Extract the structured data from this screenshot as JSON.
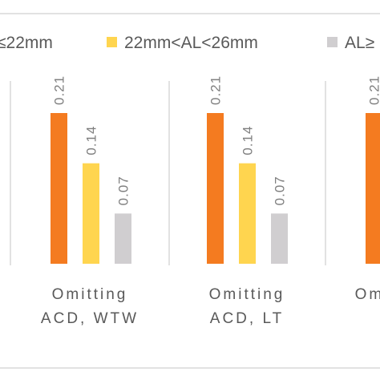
{
  "chart_data": {
    "type": "bar",
    "categories": [
      [
        "Omitting",
        "ACD, WTW"
      ],
      [
        "Omitting",
        "ACD, LT"
      ],
      [
        "Omitting",
        ""
      ]
    ],
    "series": [
      {
        "name": "≤22mm",
        "color": "#f47b20",
        "values": [
          0.21,
          0.21,
          0.21
        ]
      },
      {
        "name": "22mm<AL<26mm",
        "color": "#ffd54f",
        "values": [
          0.14,
          0.14,
          null
        ]
      },
      {
        "name": "AL≥",
        "color": "#d0ced0",
        "values": [
          0.07,
          0.07,
          null
        ]
      }
    ],
    "value_labels": [
      [
        "0.21",
        "0.14",
        "0.07"
      ],
      [
        "0.21",
        "0.14",
        "0.07"
      ],
      [
        "0.21",
        "",
        ""
      ]
    ],
    "ylim": [
      0,
      0.21
    ],
    "legend_position": "top",
    "gridlines": false
  }
}
